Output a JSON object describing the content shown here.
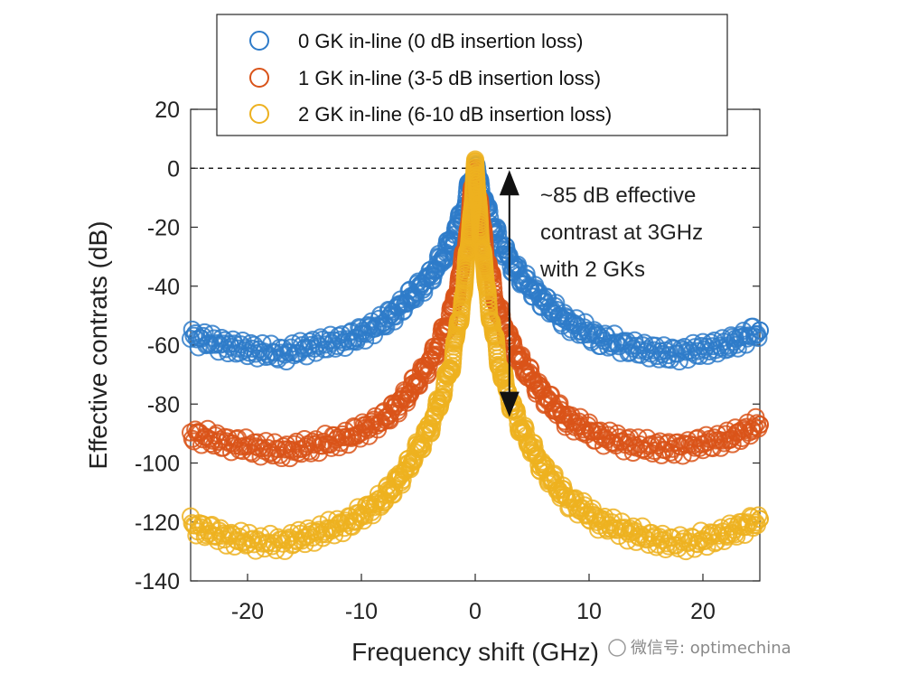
{
  "chart_data": {
    "type": "scatter",
    "title": "",
    "xlabel": "Frequency shift (GHz)",
    "ylabel": "Effective contrats (dB)",
    "xlim": [
      -25,
      25
    ],
    "ylim": [
      -140,
      20
    ],
    "xticks": [
      -20,
      -10,
      0,
      10,
      20
    ],
    "yticks": [
      20,
      0,
      -20,
      -40,
      -60,
      -80,
      -100,
      -120,
      -140
    ],
    "reference_line_y": 0,
    "legend_position": "top-center",
    "series": [
      {
        "name": "0 GK in-line (0 dB insertion loss)",
        "color": "#2e7bc9",
        "x": [
          -25,
          -22,
          -19,
          -17,
          -14,
          -11,
          -8,
          -6,
          -4,
          -3,
          -2,
          -1,
          -0.5,
          0,
          0.5,
          1,
          2,
          3,
          4,
          6,
          8,
          11,
          14,
          17,
          19,
          22,
          25
        ],
        "y": [
          -57,
          -60,
          -62,
          -63,
          -60,
          -58,
          -52,
          -45,
          -37,
          -31,
          -24,
          -14,
          -6,
          0,
          -6,
          -14,
          -24,
          -31,
          -37,
          -45,
          -52,
          -58,
          -61,
          -63,
          -62,
          -60,
          -55
        ]
      },
      {
        "name": "1 GK in-line (3-5 dB insertion loss)",
        "color": "#d95319",
        "x": [
          -25,
          -22,
          -19,
          -17,
          -14,
          -11,
          -8,
          -6,
          -4,
          -3,
          -2,
          -1,
          -0.5,
          0,
          0.5,
          1,
          2,
          3,
          4,
          6,
          8,
          11,
          14,
          17,
          19,
          22,
          25
        ],
        "y": [
          -90,
          -93,
          -95,
          -96,
          -94,
          -91,
          -85,
          -77,
          -66,
          -58,
          -48,
          -30,
          -16,
          0,
          -16,
          -30,
          -48,
          -58,
          -66,
          -77,
          -85,
          -91,
          -94,
          -95,
          -94,
          -92,
          -87
        ]
      },
      {
        "name": "2 GK in-line (6-10 dB insertion loss)",
        "color": "#edb120",
        "x": [
          -25,
          -22,
          -19,
          -17,
          -14,
          -11,
          -8,
          -6,
          -4,
          -3,
          -2,
          -1,
          -0.5,
          0,
          0.5,
          1,
          2,
          3,
          4,
          6,
          8,
          11,
          14,
          17,
          19,
          22,
          25
        ],
        "y": [
          -121,
          -125,
          -127,
          -127,
          -124,
          -120,
          -112,
          -102,
          -88,
          -78,
          -65,
          -42,
          -22,
          0,
          -22,
          -42,
          -65,
          -78,
          -88,
          -102,
          -112,
          -120,
          -124,
          -127,
          -127,
          -124,
          -119
        ]
      }
    ],
    "annotations": [
      {
        "lines": [
          "~85 dB effective",
          "contrast at 3GHz",
          "with 2 GKs"
        ],
        "arrow": {
          "x": 3,
          "y_from": 0,
          "y_to": -85,
          "double_headed": true
        }
      }
    ]
  },
  "watermark": {
    "text": "微信号: optimechina"
  }
}
